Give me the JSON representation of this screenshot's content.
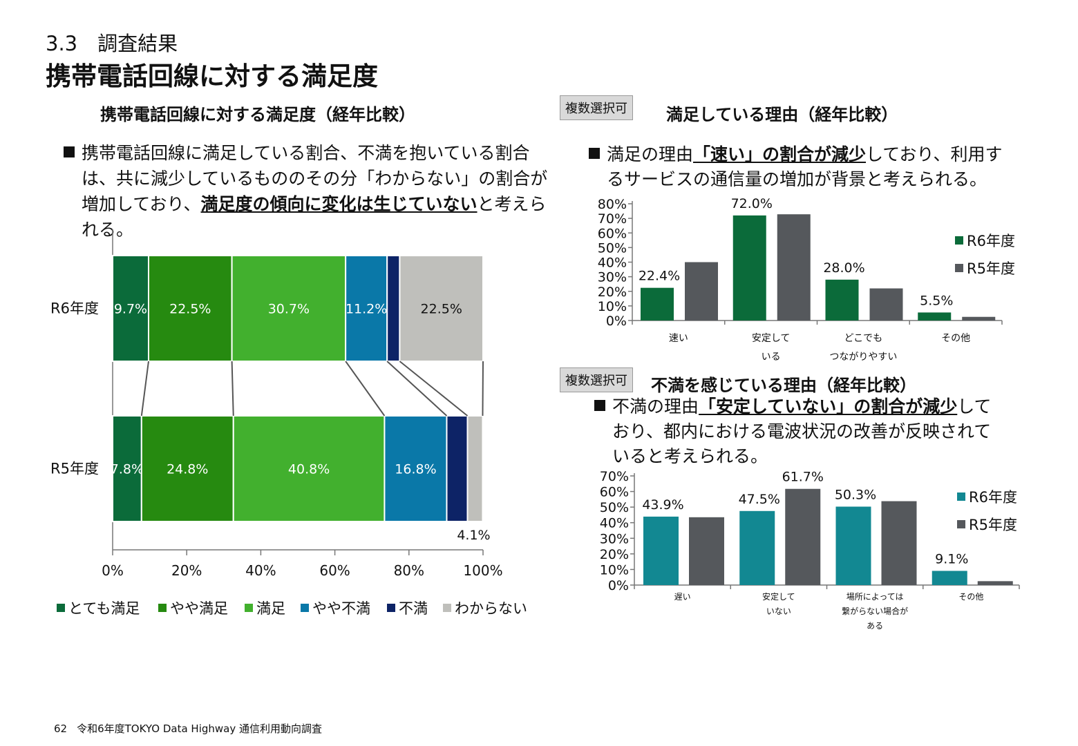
{
  "section": "3.3　調査結果",
  "title": "携帯電話回線に対する満足度",
  "left_panel": {
    "title": "携帯電話回線に対する満足度（経年比較）",
    "bullet": {
      "part1": "携帯電話回線に満足している割合、不満を抱いている割合は、共に減少しているもののその分「わからない」の割合が増加しており、",
      "highlight": "満足度の傾向に変化は生じていない",
      "part2": "と考えられる。"
    }
  },
  "right_top_panel": {
    "badge": "複数選択可",
    "title": "満足している理由（経年比較）",
    "bullet": {
      "part1": "満足の理由",
      "highlight1": "「速い」の割合が減少",
      "part2": "しており、利用するサービスの通信量の増加が背景と考えられる。"
    }
  },
  "right_bottom_panel": {
    "badge": "複数選択可",
    "title": "不満を感じている理由（経年比較）",
    "bullet": {
      "part1": "不満の理由",
      "highlight1": "「安定していない」の割合が減少",
      "part2": "しており、都内における電波状況の改善が反映されていると考えられる。"
    }
  },
  "footer": {
    "page": "62",
    "text": "令和6年度TOKYO Data Highway 通信利用動向調査"
  },
  "chart_data": [
    {
      "type": "bar",
      "orientation": "horizontal-stacked-100",
      "categories": [
        "R6年度",
        "R5年度"
      ],
      "series": [
        {
          "name": "とても満足",
          "values": [
            9.7,
            7.8
          ],
          "labels": [
            "9.7%",
            "7.8%"
          ],
          "color": "#0b6b3a",
          "label_color": "#ffffff"
        },
        {
          "name": "やや満足",
          "values": [
            22.5,
            24.8
          ],
          "labels": [
            "22.5%",
            "24.8%"
          ],
          "color": "#268a10",
          "label_color": "#ffffff"
        },
        {
          "name": "満足",
          "values": [
            30.7,
            40.8
          ],
          "labels": [
            "30.7%",
            "40.8%"
          ],
          "color": "#42b02e",
          "label_color": "#ffffff"
        },
        {
          "name": "やや不満",
          "values": [
            11.2,
            16.8
          ],
          "labels": [
            "11.2%",
            "16.8%"
          ],
          "color": "#0a78a8",
          "label_color": "#ffffff"
        },
        {
          "name": "不満",
          "values": [
            3.4,
            5.6
          ],
          "labels": [
            "",
            ""
          ],
          "color": "#0d2366",
          "label_color": "#ffffff"
        },
        {
          "name": "わからない",
          "values": [
            22.5,
            4.1
          ],
          "labels": [
            "22.5%",
            "4.1%"
          ],
          "color": "#bfbfbb",
          "label_color": "#111111"
        }
      ],
      "xlim": [
        0,
        100
      ],
      "xticks": [
        "0%",
        "20%",
        "40%",
        "60%",
        "80%",
        "100%"
      ],
      "legend": "bottom"
    },
    {
      "type": "bar",
      "categories": [
        "速い",
        "安定して\nいる",
        "どこでも\nつながりやすい",
        "その他"
      ],
      "series": [
        {
          "name": "R6年度",
          "values": [
            22.4,
            72.0,
            28.0,
            5.5
          ],
          "labels": [
            "22.4%",
            "72.0%",
            "28.0%",
            "5.5%"
          ],
          "color": "#0b6b3a"
        },
        {
          "name": "R5年度",
          "values": [
            40.0,
            72.8,
            22.0,
            2.5
          ],
          "color": "#55585c"
        }
      ],
      "ylim": [
        0,
        80
      ],
      "yticks": [
        "0%",
        "10%",
        "20%",
        "30%",
        "40%",
        "50%",
        "60%",
        "70%",
        "80%"
      ],
      "legend": "right"
    },
    {
      "type": "bar",
      "categories": [
        "遅い",
        "安定して\nいない",
        "場所によっては\n繋がらない場合が\nある",
        "その他"
      ],
      "series": [
        {
          "name": "R6年度",
          "values": [
            43.9,
            47.5,
            50.3,
            9.1
          ],
          "labels": [
            "43.9%",
            "47.5%",
            "50.3%",
            "9.1%"
          ],
          "color": "#128892"
        },
        {
          "name": "R5年度",
          "values": [
            43.5,
            61.7,
            53.8,
            2.5
          ],
          "labels": [
            "",
            "61.7%",
            "",
            ""
          ],
          "color": "#55585c"
        }
      ],
      "ylim": [
        0,
        70
      ],
      "yticks": [
        "0%",
        "10%",
        "20%",
        "30%",
        "40%",
        "50%",
        "60%",
        "70%"
      ],
      "legend": "right"
    }
  ]
}
